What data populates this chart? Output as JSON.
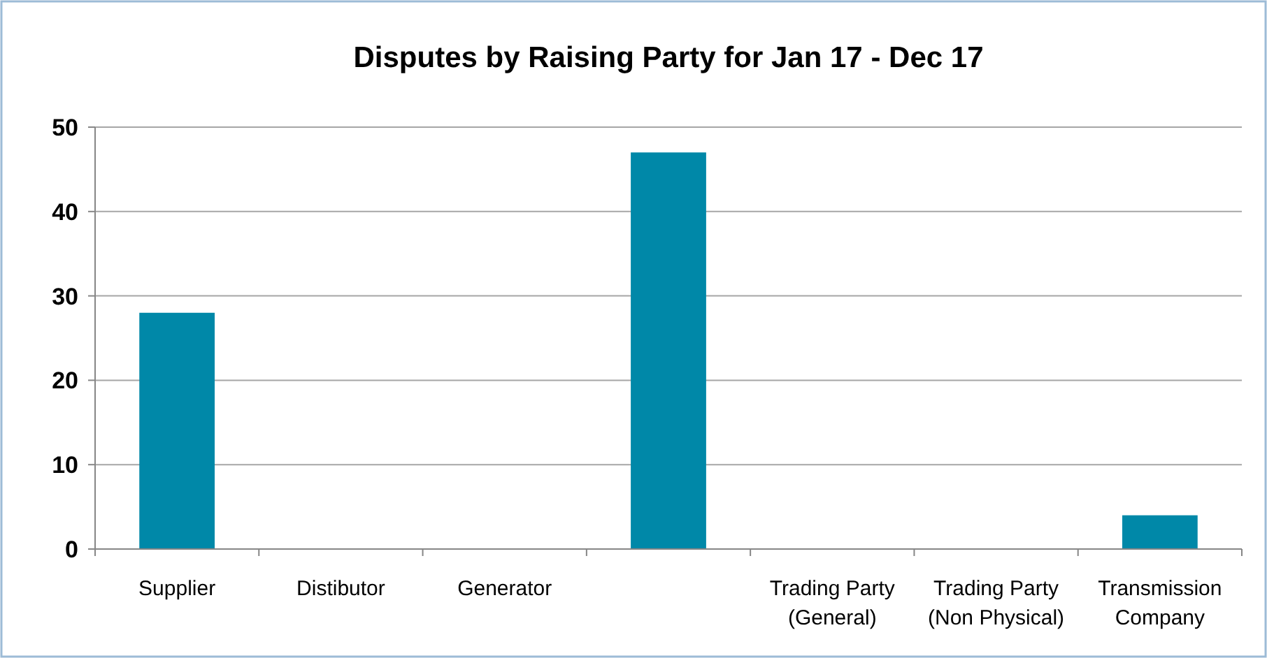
{
  "chart_data": {
    "type": "bar",
    "title": "Disputes by Raising Party for Jan 17 - Dec 17",
    "categories": [
      "Supplier",
      "Distibutor",
      "Generator",
      null,
      "Trading Party (General)",
      "Trading Party (Non Physical)",
      "Transmission Company"
    ],
    "values": [
      28,
      0,
      0,
      47,
      0,
      0,
      4
    ],
    "color": "#0088a8",
    "ylim": [
      0,
      50
    ],
    "yticks": [
      0,
      10,
      20,
      30,
      40,
      50
    ],
    "grid": "y"
  }
}
